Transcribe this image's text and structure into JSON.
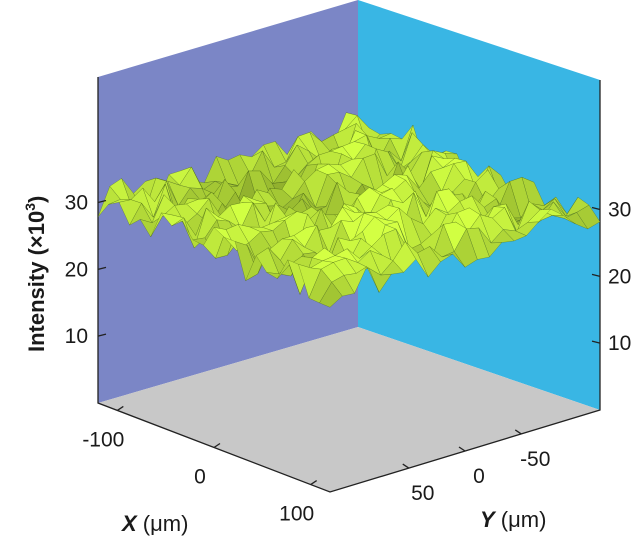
{
  "chart_data": {
    "type": "surface",
    "zlabel_main": "Intensity (×10",
    "zlabel_sup": "3",
    "zlabel_close": ")",
    "xlabel_var": "X",
    "xlabel_unit": " (μm)",
    "ylabel_var": "Y",
    "ylabel_unit": " (μm)",
    "z_ticks": [
      10,
      20,
      30
    ],
    "x_ticks": [
      -100,
      0,
      100
    ],
    "y_ticks": [
      50,
      0,
      -50
    ],
    "x_range": [
      -120,
      120
    ],
    "y_range": [
      -120,
      120
    ],
    "z_range": [
      0,
      40
    ],
    "mean_intensity": 30,
    "intensity_spread": 3,
    "grid": false,
    "colors": {
      "left_wall": "#7b86c6",
      "right_wall": "#39b6e4",
      "floor": "#c8c8c8",
      "surface": "#b8e03a",
      "surface_edge": "#3d5a10"
    }
  }
}
